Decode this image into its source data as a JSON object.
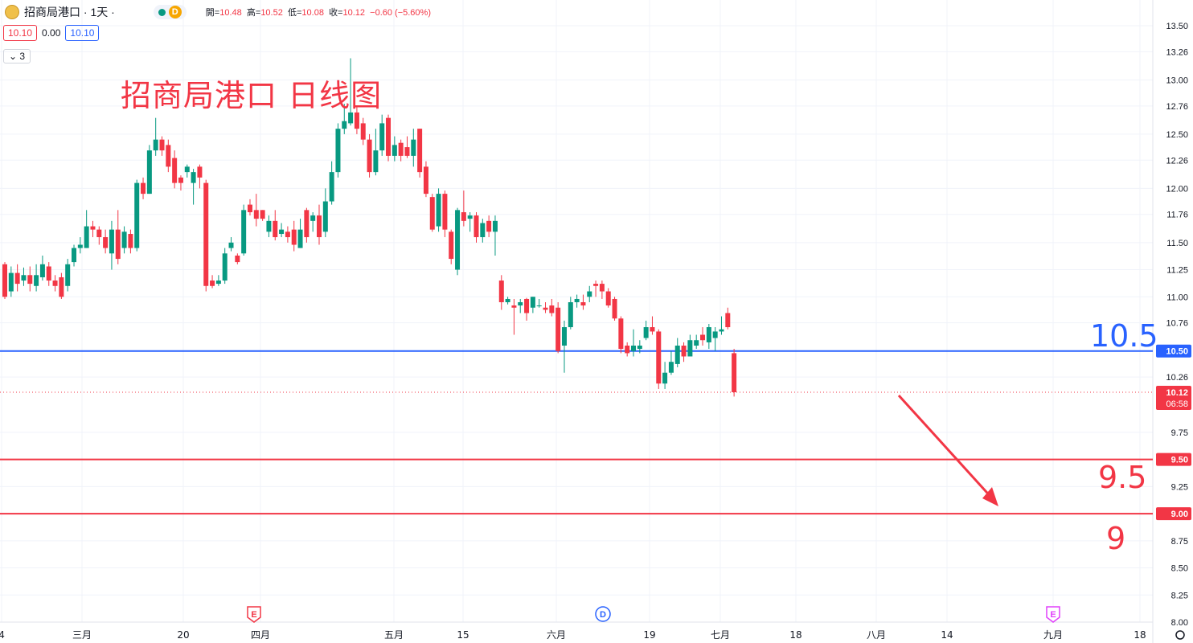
{
  "header": {
    "title": "招商局港口 · 1天 ·",
    "badge": "D",
    "ohlc": {
      "open_label": "開=",
      "open": "10.48",
      "high_label": "高=",
      "high": "10.52",
      "low_label": "低=",
      "low": "10.08",
      "close_label": "收=",
      "close": "10.12",
      "change": "−0.60 (−5.60%)"
    },
    "bid": "10.10",
    "spread": "0.00",
    "ask": "10.10",
    "indicator_toggle": "3"
  },
  "annotations": {
    "chart_title": "招商局港口 日线图",
    "label_10_5": "10.5",
    "label_9_5": "9.5",
    "label_9": "9"
  },
  "colors": {
    "up": "#089981",
    "down": "#f23645",
    "blue_line": "#2962ff",
    "red_line": "#f23645",
    "grid": "#f0f3fa",
    "axis_text": "#131722"
  },
  "chart_data": {
    "type": "candlestick",
    "y_axis": {
      "ticks": [
        "13.50",
        "13.26",
        "13.00",
        "12.76",
        "12.50",
        "12.26",
        "12.00",
        "11.76",
        "11.50",
        "11.25",
        "11.00",
        "10.76",
        "10.26",
        "9.75",
        "9.50",
        "9.25",
        "9.00",
        "8.75",
        "8.50",
        "8.25",
        "8.00"
      ]
    },
    "x_axis": {
      "labels": [
        "4",
        "三月",
        "20",
        "四月",
        "五月",
        "15",
        "六月",
        "19",
        "七月",
        "18",
        "八月",
        "14",
        "九月",
        "18"
      ]
    },
    "price_labels": [
      {
        "value": 10.5,
        "text": "10.50",
        "color": "#2962ff"
      },
      {
        "value": 10.12,
        "text": "10.12",
        "sub": "06:58",
        "color": "#f23645"
      },
      {
        "value": 9.5,
        "text": "9.50",
        "color": "#f23645"
      },
      {
        "value": 9.0,
        "text": "9.00",
        "color": "#f23645"
      }
    ],
    "horizontal_lines": [
      {
        "value": 10.5,
        "color": "#2962ff",
        "style": "solid"
      },
      {
        "value": 9.5,
        "color": "#f23645",
        "style": "solid"
      },
      {
        "value": 9.0,
        "color": "#f23645",
        "style": "solid"
      },
      {
        "value": 10.12,
        "color": "#f23645",
        "style": "dotted"
      }
    ],
    "events": [
      {
        "letter": "E",
        "date_label": "四月",
        "color": "#f23645"
      },
      {
        "letter": "D",
        "date_label": "六月",
        "color": "#2962ff"
      },
      {
        "letter": "E",
        "date_label": "九月",
        "color": "#e040fb"
      }
    ],
    "arrow": {
      "from": [
        10.12,
        "八月"
      ],
      "to": [
        9.0,
        "九月"
      ],
      "color": "#f23645"
    },
    "candles": [
      [
        11.3,
        11.0,
        11.32,
        10.98
      ],
      [
        11.05,
        11.22,
        11.28,
        11.0
      ],
      [
        11.22,
        11.12,
        11.3,
        11.05
      ],
      [
        11.15,
        11.2,
        11.27,
        11.1
      ],
      [
        11.2,
        11.12,
        11.28,
        11.05
      ],
      [
        11.1,
        11.2,
        11.3,
        11.05
      ],
      [
        11.18,
        11.3,
        11.38,
        11.15
      ],
      [
        11.28,
        11.15,
        11.32,
        11.1
      ],
      [
        11.15,
        11.1,
        11.2,
        11.05
      ],
      [
        11.18,
        11.0,
        11.22,
        10.98
      ],
      [
        11.1,
        11.3,
        11.35,
        11.05
      ],
      [
        11.32,
        11.45,
        11.48,
        11.28
      ],
      [
        11.45,
        11.48,
        11.55,
        11.4
      ],
      [
        11.45,
        11.65,
        11.8,
        11.45
      ],
      [
        11.65,
        11.62,
        11.7,
        11.55
      ],
      [
        11.62,
        11.55,
        11.65,
        11.48
      ],
      [
        11.55,
        11.45,
        11.62,
        11.4
      ],
      [
        11.4,
        11.62,
        11.7,
        11.25
      ],
      [
        11.62,
        11.35,
        11.8,
        11.3
      ],
      [
        11.45,
        11.6,
        11.65,
        11.4
      ],
      [
        11.58,
        11.45,
        11.62,
        11.4
      ],
      [
        11.45,
        12.05,
        12.08,
        11.42
      ],
      [
        12.05,
        11.95,
        12.1,
        11.9
      ],
      [
        11.95,
        12.35,
        12.4,
        11.95
      ],
      [
        12.35,
        12.45,
        12.65,
        12.3
      ],
      [
        12.45,
        12.35,
        12.48,
        12.3
      ],
      [
        12.4,
        12.2,
        12.45,
        12.15
      ],
      [
        12.28,
        12.05,
        12.35,
        12.0
      ],
      [
        12.1,
        12.05,
        12.12,
        11.98
      ],
      [
        12.15,
        12.2,
        12.22,
        12.1
      ],
      [
        12.05,
        12.15,
        12.18,
        11.85
      ],
      [
        12.2,
        12.1,
        12.22,
        12.0
      ],
      [
        12.05,
        11.1,
        12.08,
        11.05
      ],
      [
        11.15,
        11.1,
        11.2,
        11.08
      ],
      [
        11.12,
        11.15,
        11.2,
        11.1
      ],
      [
        11.15,
        11.4,
        11.45,
        11.12
      ],
      [
        11.45,
        11.5,
        11.55,
        11.42
      ],
      [
        11.38,
        11.32,
        11.4,
        11.3
      ],
      [
        11.4,
        11.8,
        11.85,
        11.38
      ],
      [
        11.85,
        11.78,
        11.9,
        11.75
      ],
      [
        11.8,
        11.72,
        11.95,
        11.65
      ],
      [
        11.8,
        11.72,
        11.8,
        11.7
      ],
      [
        11.6,
        11.7,
        11.75,
        11.55
      ],
      [
        11.7,
        11.55,
        11.8,
        11.52
      ],
      [
        11.58,
        11.62,
        11.68,
        11.55
      ],
      [
        11.6,
        11.55,
        11.65,
        11.5
      ],
      [
        11.62,
        11.48,
        11.7,
        11.42
      ],
      [
        11.45,
        11.62,
        11.72,
        11.45
      ],
      [
        11.8,
        11.55,
        11.82,
        11.5
      ],
      [
        11.7,
        11.75,
        11.78,
        11.6
      ],
      [
        11.75,
        11.55,
        11.85,
        11.48
      ],
      [
        11.6,
        11.88,
        12.0,
        11.55
      ],
      [
        11.88,
        12.15,
        12.25,
        11.85
      ],
      [
        12.15,
        12.55,
        12.6,
        12.1
      ],
      [
        12.55,
        12.62,
        12.78,
        12.5
      ],
      [
        12.6,
        12.7,
        13.2,
        12.58
      ],
      [
        12.7,
        12.55,
        12.75,
        12.5
      ],
      [
        12.6,
        12.45,
        12.65,
        12.4
      ],
      [
        12.45,
        12.15,
        12.5,
        12.1
      ],
      [
        12.15,
        12.35,
        12.55,
        12.12
      ],
      [
        12.35,
        12.6,
        12.68,
        12.3
      ],
      [
        12.65,
        12.3,
        12.68,
        12.25
      ],
      [
        12.3,
        12.4,
        12.48,
        12.25
      ],
      [
        12.42,
        12.3,
        12.45,
        12.25
      ],
      [
        12.38,
        12.3,
        12.48,
        12.28
      ],
      [
        12.3,
        12.45,
        12.55,
        12.2
      ],
      [
        12.55,
        12.15,
        12.55,
        12.1
      ],
      [
        12.2,
        11.95,
        12.25,
        11.92
      ],
      [
        11.92,
        11.62,
        11.95,
        11.6
      ],
      [
        11.65,
        11.95,
        12.0,
        11.6
      ],
      [
        11.95,
        11.62,
        11.98,
        11.55
      ],
      [
        11.6,
        11.35,
        11.62,
        11.3
      ],
      [
        11.25,
        11.8,
        11.82,
        11.2
      ],
      [
        11.78,
        11.7,
        11.98,
        11.65
      ],
      [
        11.72,
        11.75,
        11.78,
        11.6
      ],
      [
        11.75,
        11.55,
        11.78,
        11.5
      ],
      [
        11.55,
        11.68,
        11.72,
        11.5
      ],
      [
        11.7,
        11.6,
        11.75,
        11.55
      ],
      [
        11.6,
        11.7,
        11.75,
        11.38
      ],
      [
        11.15,
        10.95,
        11.2,
        10.88
      ],
      [
        10.95,
        10.98,
        11.0,
        10.93
      ],
      [
        10.92,
        10.9,
        10.98,
        10.65
      ],
      [
        10.92,
        10.95,
        10.98,
        10.85
      ],
      [
        10.98,
        10.85,
        10.99,
        10.78
      ],
      [
        10.9,
        11.0,
        11.0,
        10.85
      ],
      [
        10.92,
        10.92,
        10.98,
        10.9
      ],
      [
        10.9,
        10.88,
        10.95,
        10.85
      ],
      [
        10.92,
        10.85,
        10.98,
        10.82
      ],
      [
        10.9,
        10.5,
        10.95,
        10.48
      ],
      [
        10.55,
        10.72,
        10.78,
        10.3
      ],
      [
        10.72,
        10.95,
        11.0,
        10.7
      ],
      [
        10.95,
        10.98,
        11.02,
        10.9
      ],
      [
        10.95,
        10.92,
        11.02,
        10.88
      ],
      [
        11.0,
        11.05,
        11.1,
        10.95
      ],
      [
        11.12,
        11.1,
        11.15,
        11.0
      ],
      [
        11.12,
        11.05,
        11.15,
        10.98
      ],
      [
        11.05,
        10.92,
        11.08,
        10.9
      ],
      [
        10.98,
        10.8,
        11.0,
        10.78
      ],
      [
        10.8,
        10.52,
        10.82,
        10.48
      ],
      [
        10.55,
        10.48,
        10.58,
        10.45
      ],
      [
        10.5,
        10.55,
        10.7,
        10.45
      ],
      [
        10.52,
        10.55,
        10.6,
        10.48
      ],
      [
        10.62,
        10.72,
        10.78,
        10.6
      ],
      [
        10.72,
        10.68,
        10.82,
        10.65
      ],
      [
        10.68,
        10.2,
        10.7,
        10.15
      ],
      [
        10.2,
        10.3,
        10.4,
        10.15
      ],
      [
        10.3,
        10.4,
        10.5,
        10.28
      ],
      [
        10.38,
        10.55,
        10.62,
        10.35
      ],
      [
        10.55,
        10.45,
        10.58,
        10.4
      ],
      [
        10.45,
        10.6,
        10.65,
        10.48
      ],
      [
        10.55,
        10.6,
        10.65,
        10.52
      ],
      [
        10.65,
        10.6,
        10.72,
        10.55
      ],
      [
        10.58,
        10.72,
        10.75,
        10.52
      ],
      [
        10.62,
        10.68,
        10.72,
        10.5
      ],
      [
        10.68,
        10.7,
        10.82,
        10.65
      ],
      [
        10.85,
        10.72,
        10.9,
        10.7
      ],
      [
        10.48,
        10.12,
        10.52,
        10.08
      ]
    ]
  }
}
